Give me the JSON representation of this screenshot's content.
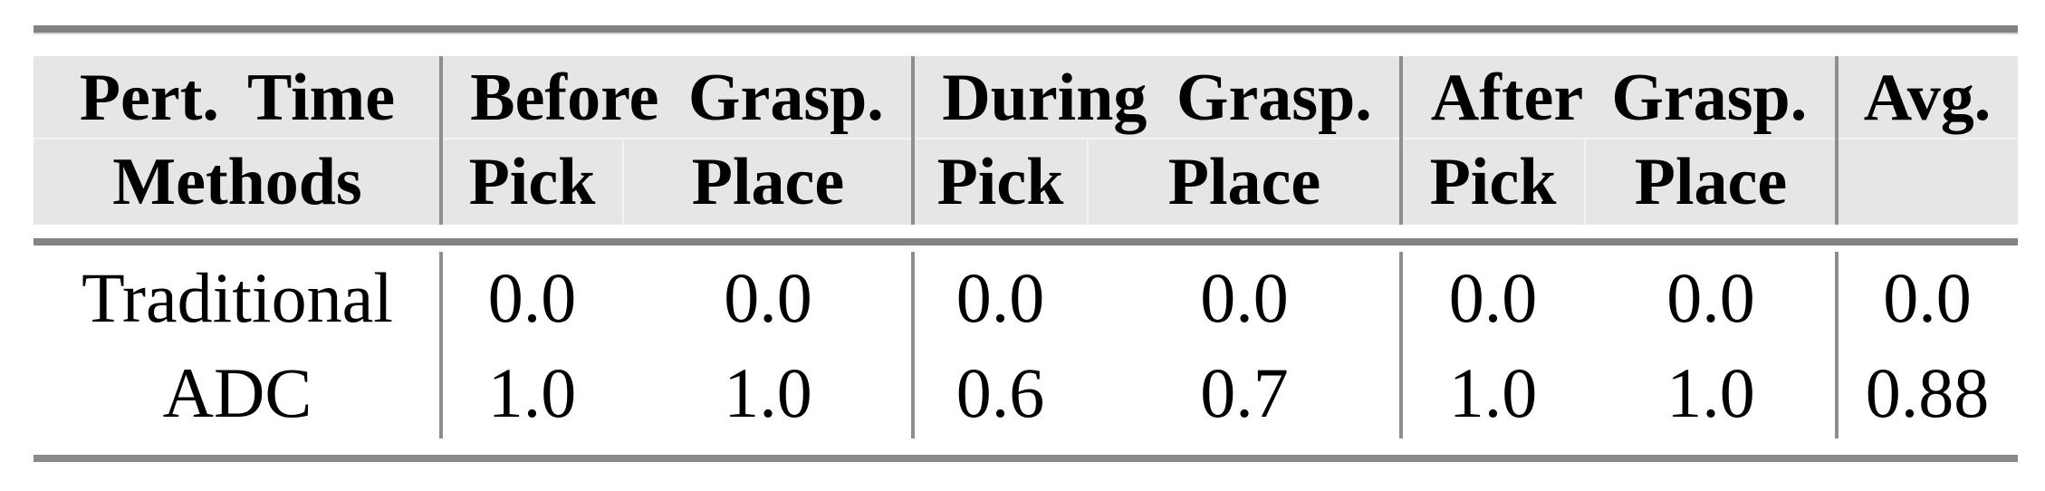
{
  "table": {
    "header": {
      "corner": {
        "line1": "Pert. Time",
        "line2": "Methods"
      },
      "groups": [
        {
          "label": "Before Grasp.",
          "sub": [
            "Pick",
            "Place"
          ]
        },
        {
          "label": "During Grasp.",
          "sub": [
            "Pick",
            "Place"
          ]
        },
        {
          "label": "After Grasp.",
          "sub": [
            "Pick",
            "Place"
          ]
        },
        {
          "label": "Avg.",
          "sub": [
            ""
          ]
        }
      ]
    },
    "rows": [
      {
        "method": "Traditional",
        "values": [
          "0.0",
          "0.0",
          "0.0",
          "0.0",
          "0.0",
          "0.0",
          "0.0"
        ]
      },
      {
        "method": "ADC",
        "values": [
          "1.0",
          "1.0",
          "0.6",
          "0.7",
          "1.0",
          "1.0",
          "0.88"
        ]
      }
    ],
    "colors": {
      "header_bg": "#e6e6e6",
      "rule_gray": "#828282",
      "rule_light_edge": "#d2d2d2",
      "separator_gray": "#8e8e8e",
      "hairline": "#f3f3f3",
      "text": "#000000",
      "background": "#ffffff"
    }
  },
  "chart_data": {
    "type": "table",
    "columns": [
      "Methods",
      "Before Grasp. Pick",
      "Before Grasp. Place",
      "During Grasp. Pick",
      "During Grasp. Place",
      "After Grasp. Pick",
      "After Grasp. Place",
      "Avg."
    ],
    "rows": [
      [
        "Traditional",
        0.0,
        0.0,
        0.0,
        0.0,
        0.0,
        0.0,
        0.0
      ],
      [
        "ADC",
        1.0,
        1.0,
        0.6,
        0.7,
        1.0,
        1.0,
        0.88
      ]
    ]
  }
}
